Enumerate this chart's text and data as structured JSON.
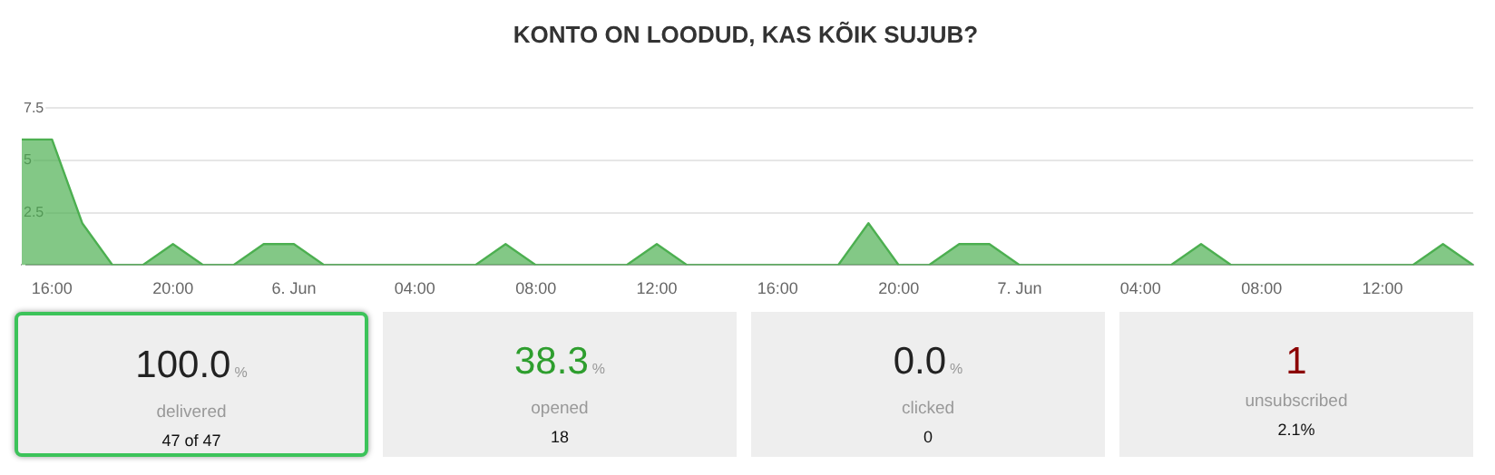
{
  "chart_data": [
    {
      "type": "area",
      "title": "KONTO ON LOODUD, KAS KÕIK SUJUB?",
      "x": [
        "--06-05T15:00",
        "--06-05T16:00",
        "--06-05T17:00",
        "--06-05T18:00",
        "--06-05T19:00",
        "--06-05T20:00",
        "--06-05T21:00",
        "--06-05T22:00",
        "--06-05T23:00",
        "--06-06T00:00",
        "--06-06T01:00",
        "--06-06T02:00",
        "--06-06T03:00",
        "--06-06T04:00",
        "--06-06T05:00",
        "--06-06T06:00",
        "--06-06T07:00",
        "--06-06T08:00",
        "--06-06T09:00",
        "--06-06T10:00",
        "--06-06T11:00",
        "--06-06T12:00",
        "--06-06T13:00",
        "--06-06T14:00",
        "--06-06T15:00",
        "--06-06T16:00",
        "--06-06T17:00",
        "--06-06T18:00",
        "--06-06T19:00",
        "--06-06T20:00",
        "--06-06T21:00",
        "--06-06T22:00",
        "--06-06T23:00",
        "--06-07T00:00",
        "--06-07T01:00",
        "--06-07T02:00",
        "--06-07T03:00",
        "--06-07T04:00",
        "--06-07T05:00",
        "--06-07T06:00",
        "--06-07T07:00",
        "--06-07T08:00",
        "--06-07T09:00",
        "--06-07T10:00",
        "--06-07T11:00",
        "--06-07T12:00",
        "--06-07T13:00",
        "--06-07T14:00",
        "--06-07T15:00"
      ],
      "series": [
        {
          "color": "#4caf50",
          "values": [
            6,
            6,
            2,
            0,
            0,
            1,
            0,
            0,
            1,
            1,
            0,
            0,
            0,
            0,
            0,
            0,
            1,
            0,
            0,
            0,
            0,
            1,
            0,
            0,
            0,
            0,
            0,
            0,
            2,
            0,
            0,
            1,
            1,
            0,
            0,
            0,
            0,
            0,
            0,
            1,
            0,
            0,
            0,
            0,
            0,
            0,
            0,
            1,
            0
          ]
        }
      ],
      "xlim": [
        "--06-05T15:00",
        "--06-07T15:00"
      ],
      "xticks": [
        {
          "value": "--06-05T16:00",
          "label": "16:00"
        },
        {
          "value": "--06-05T20:00",
          "label": "20:00"
        },
        {
          "value": "--06-06T00:00",
          "label": "6. Jun"
        },
        {
          "value": "--06-06T04:00",
          "label": "04:00"
        },
        {
          "value": "--06-06T08:00",
          "label": "08:00"
        },
        {
          "value": "--06-06T12:00",
          "label": "12:00"
        },
        {
          "value": "--06-06T16:00",
          "label": "16:00"
        },
        {
          "value": "--06-06T20:00",
          "label": "20:00"
        },
        {
          "value": "--06-07T00:00",
          "label": "7. Jun"
        },
        {
          "value": "--06-07T04:00",
          "label": "04:00"
        },
        {
          "value": "--06-07T08:00",
          "label": "08:00"
        },
        {
          "value": "--06-07T12:00",
          "label": "12:00"
        }
      ],
      "ylim": [
        0,
        7.5
      ],
      "yticks": [
        {
          "value": 0,
          "label": null
        },
        2.5,
        5,
        7.5
      ],
      "grid": "y",
      "legend": false,
      "marker": "none"
    },
    {
      "type": "other",
      "categories": [
        "delivered",
        "opened",
        "clicked",
        "unsubscribed"
      ],
      "value_labels": [
        "100.0%",
        "38.3%",
        "0.0%",
        "1"
      ],
      "annotations": [
        "47 of 47",
        "18",
        "0",
        "2.1%"
      ]
    }
  ]
}
